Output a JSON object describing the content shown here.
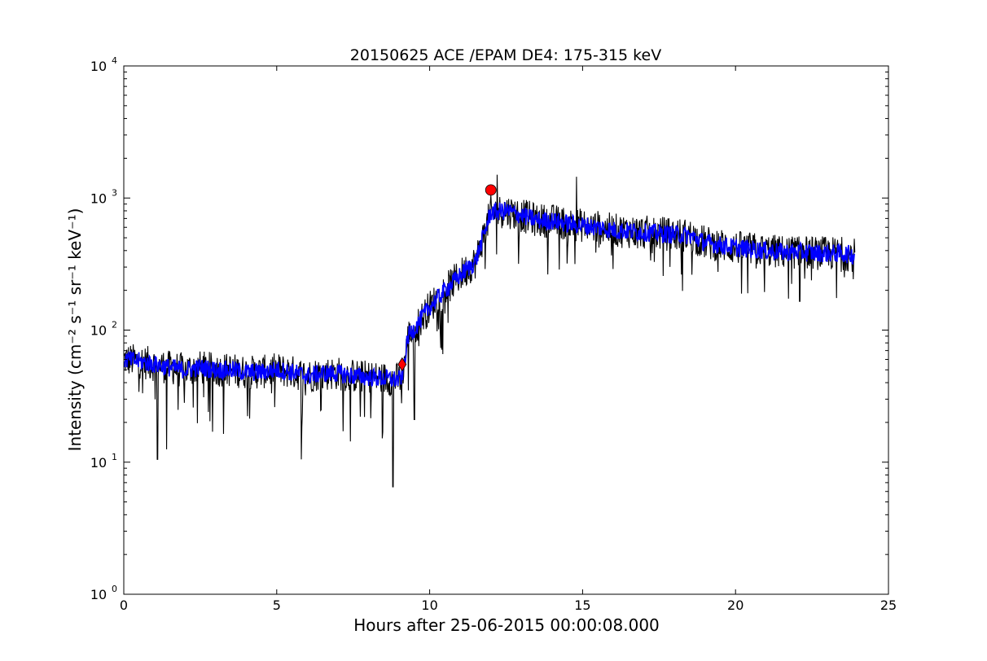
{
  "chart_data": {
    "type": "line",
    "title": "20150625 ACE /EPAM DE4: 175-315 keV",
    "xlabel": "Hours after 25-06-2015 00:00:08.000",
    "ylabel": "Intensity (cm⁻² s⁻¹ sr⁻¹ keV⁻¹)",
    "yscale": "log",
    "xlim": [
      0,
      25
    ],
    "ylim": [
      1,
      10000
    ],
    "xticks": [
      "0",
      "5",
      "10",
      "15",
      "20",
      "25"
    ],
    "yticks": [
      {
        "base": "10",
        "exp": "0"
      },
      {
        "base": "10",
        "exp": "1"
      },
      {
        "base": "10",
        "exp": "2"
      },
      {
        "base": "10",
        "exp": "3"
      },
      {
        "base": "10",
        "exp": "4"
      }
    ],
    "grid": false,
    "legend": "none",
    "series": [
      {
        "color": "#000000",
        "x": [
          0,
          0.5,
          1,
          1.5,
          2,
          2.5,
          3,
          3.5,
          4,
          4.5,
          5,
          5.5,
          6,
          6.5,
          7,
          7.5,
          8,
          8.5,
          9,
          9.1,
          9.3,
          9.6,
          10,
          10.5,
          11,
          11.5,
          12,
          12.5,
          13,
          13.5,
          14,
          14.5,
          15,
          15.5,
          16,
          16.5,
          17,
          17.5,
          18,
          18.5,
          19,
          19.5,
          20,
          20.5,
          21,
          21.5,
          22,
          22.5,
          23,
          23.5,
          23.9
        ],
        "y": [
          60,
          58,
          55,
          52,
          50,
          52,
          50,
          50,
          48,
          48,
          50,
          48,
          45,
          47,
          47,
          45,
          44,
          43,
          42,
          45,
          90,
          110,
          150,
          200,
          260,
          330,
          780,
          800,
          740,
          680,
          670,
          640,
          620,
          600,
          570,
          560,
          550,
          540,
          530,
          520,
          460,
          440,
          420,
          410,
          400,
          390,
          390,
          385,
          380,
          380,
          370
        ],
        "spikes": [
          {
            "x": 1.1,
            "y": 10.5
          },
          {
            "x": 1.4,
            "y": 12.5
          },
          {
            "x": 2.9,
            "y": 17
          },
          {
            "x": 5.8,
            "y": 10.5
          },
          {
            "x": 8.8,
            "y": 6.5
          },
          {
            "x": 9.5,
            "y": 21
          },
          {
            "x": 9.3,
            "y": 35
          },
          {
            "x": 14.8,
            "y": 1450
          },
          {
            "x": 12.2,
            "y": 1500
          },
          {
            "x": 16,
            "y": 290
          },
          {
            "x": 20.4,
            "y": 190
          },
          {
            "x": 22.1,
            "y": 165
          },
          {
            "x": 23.3,
            "y": 175
          }
        ],
        "noise_decades": 0.13
      },
      {
        "color": "#0000ff",
        "x": [
          0,
          0.5,
          1,
          1.5,
          2,
          2.5,
          3,
          3.5,
          4,
          4.5,
          5,
          5.5,
          6,
          6.5,
          7,
          7.5,
          8,
          8.5,
          9,
          9.1,
          9.3,
          9.6,
          10,
          10.5,
          11,
          11.5,
          12,
          12.5,
          13,
          13.5,
          14,
          14.5,
          15,
          15.5,
          16,
          16.5,
          17,
          17.5,
          18,
          18.5,
          19,
          19.5,
          20,
          20.5,
          21,
          21.5,
          22,
          22.5,
          23,
          23.5,
          23.9
        ],
        "y": [
          60,
          58,
          55,
          52,
          50,
          52,
          50,
          50,
          48,
          48,
          50,
          48,
          45,
          47,
          47,
          45,
          44,
          43,
          42,
          45,
          90,
          110,
          150,
          200,
          260,
          330,
          780,
          800,
          740,
          680,
          670,
          640,
          620,
          600,
          570,
          560,
          550,
          540,
          530,
          520,
          460,
          440,
          420,
          410,
          400,
          390,
          390,
          385,
          380,
          380,
          370
        ],
        "noise_decades": 0.07
      }
    ],
    "markers": [
      {
        "shape": "diamond",
        "color": "#ff0000",
        "x": 9.1,
        "y": 55
      },
      {
        "shape": "circle",
        "color": "#ff0000",
        "x": 12.0,
        "y": 1150
      }
    ]
  }
}
